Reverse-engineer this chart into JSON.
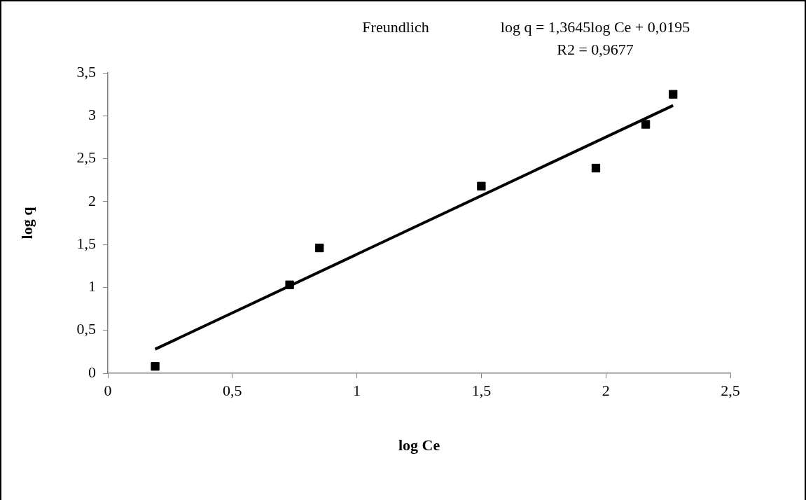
{
  "chart_data": {
    "type": "scatter",
    "title": "Freundlich",
    "xlabel": "log Ce",
    "ylabel": "log q",
    "annotations": [
      "log q = 1,3645log Ce + 0,0195",
      "R2 = 0,9677"
    ],
    "xlim": [
      0,
      2.5
    ],
    "xticks": [
      0,
      {
        "value": 0.5,
        "label": "0,5"
      },
      1,
      {
        "value": 1.5,
        "label": "1,5"
      },
      2,
      {
        "value": 2.5,
        "label": "2,5"
      }
    ],
    "ylim": [
      0,
      3.5
    ],
    "yticks": [
      0,
      {
        "value": 0.5,
        "label": "0,5"
      },
      1,
      {
        "value": 1.5,
        "label": "1,5"
      },
      2,
      {
        "value": 2.5,
        "label": "2,5"
      },
      3,
      {
        "value": 3.5,
        "label": "3,5"
      }
    ],
    "grid": false,
    "legend": false,
    "series": [
      {
        "type": "scatter",
        "color": "#000000",
        "marker": "square",
        "x": [
          0.19,
          0.73,
          0.85,
          1.5,
          1.96,
          2.16,
          2.27
        ],
        "values": [
          0.08,
          1.03,
          1.46,
          2.18,
          2.39,
          2.9,
          3.25
        ]
      },
      {
        "type": "line",
        "color": "#000000",
        "marker": "none",
        "line_style": "solid",
        "x": [
          0.19,
          2.27
        ],
        "values": [
          0.28,
          3.12
        ]
      }
    ]
  }
}
